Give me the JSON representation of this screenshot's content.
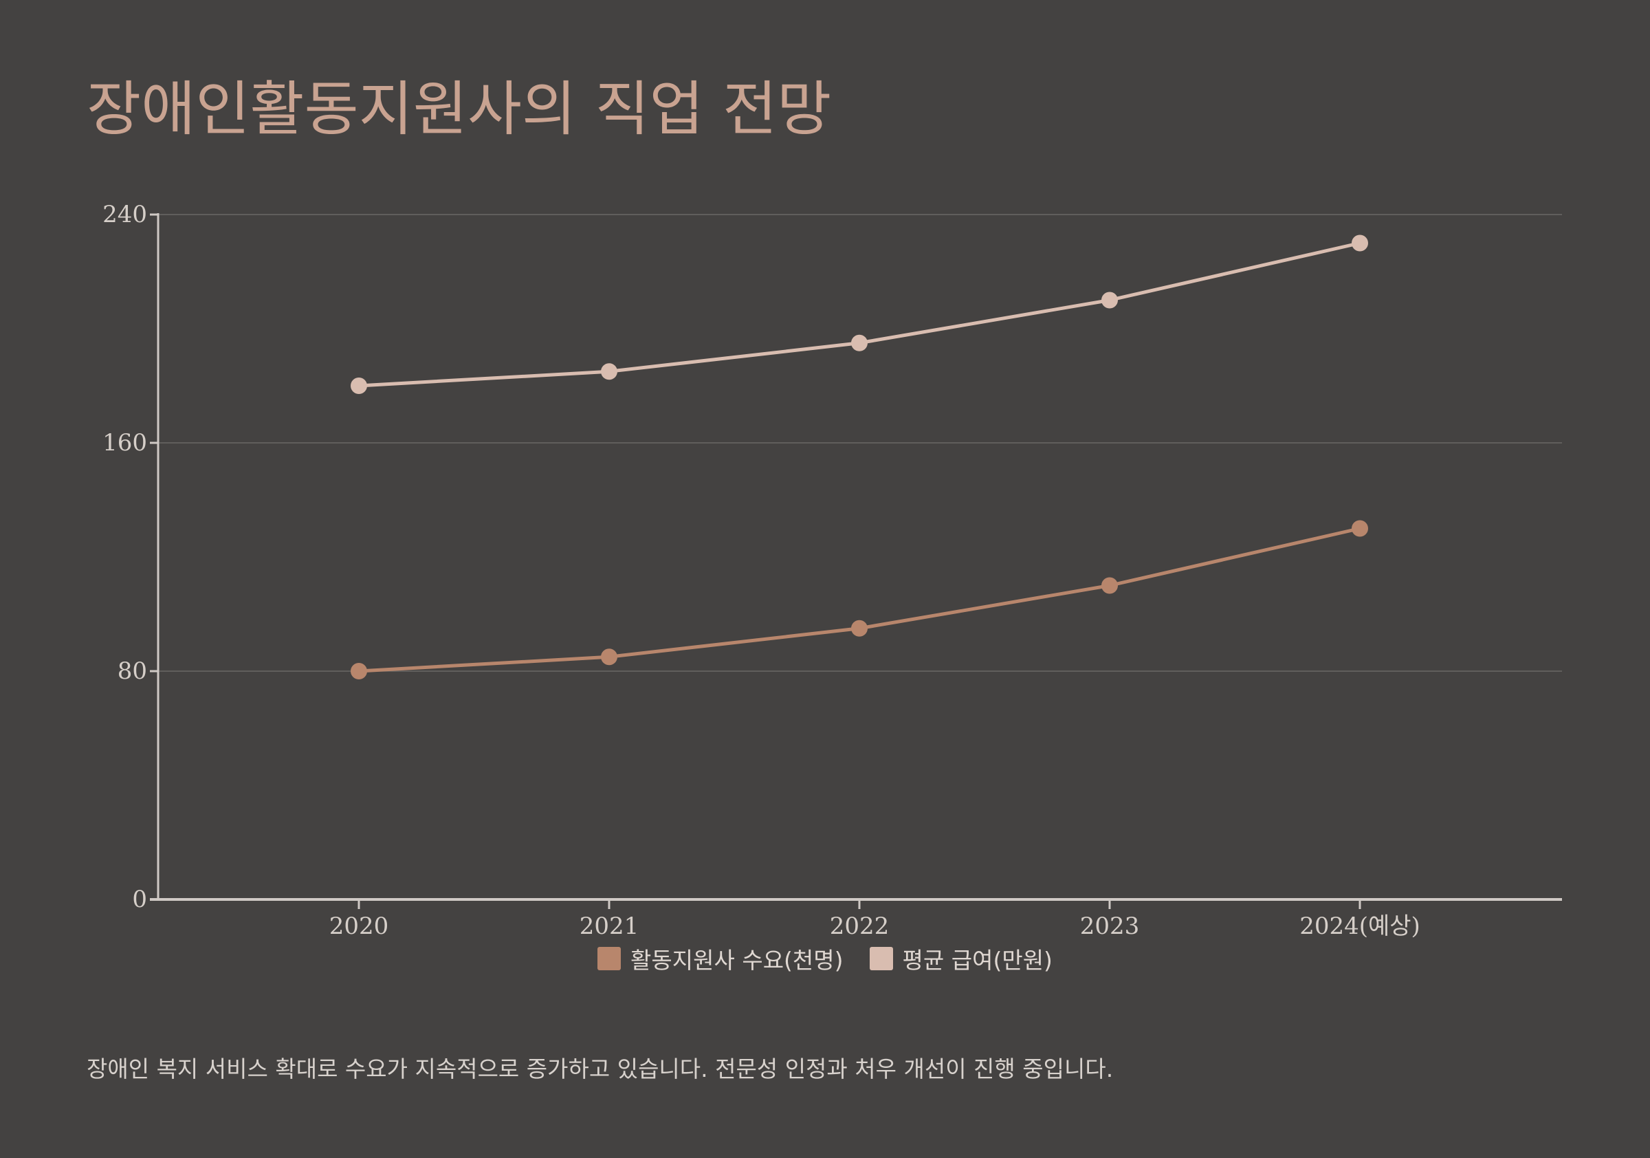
{
  "title": "장애인활동지원사의 직업 전망",
  "footnote": "장애인 복지 서비스 확대로 수요가 지속적으로 증가하고 있습니다. 전문성 인정과 처우 개선이 진행 중입니다.",
  "colors": {
    "background": "#444241",
    "title": "#c9a391",
    "series_demand": "#b8866c",
    "series_salary": "#d9bdb0",
    "axis": "#cfc9c5",
    "grid": "#6a6765"
  },
  "chart_data": {
    "type": "line",
    "title": "",
    "xlabel": "",
    "ylabel": "",
    "categories": [
      "2020",
      "2021",
      "2022",
      "2023",
      "2024(예상)"
    ],
    "ylim": [
      0,
      240
    ],
    "yticks": [
      "0",
      "80",
      "160",
      "240"
    ],
    "grid": true,
    "legend_position": "bottom",
    "series": [
      {
        "name": "활동지원사 수요(천명)",
        "values": [
          80,
          85,
          95,
          110,
          130
        ]
      },
      {
        "name": "평균 급여(만원)",
        "values": [
          180,
          185,
          195,
          210,
          230
        ]
      }
    ]
  }
}
